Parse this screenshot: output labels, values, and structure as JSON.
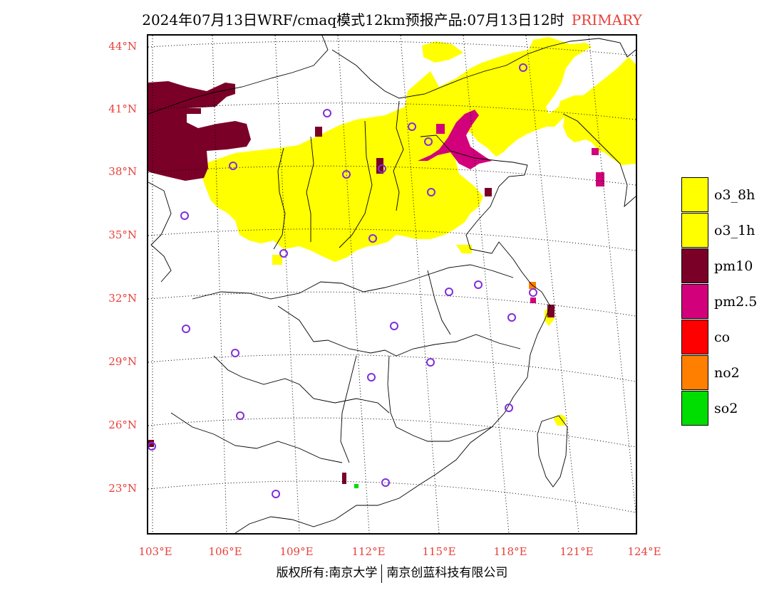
{
  "title": {
    "main": "2024年07月13日WRF/cmaq模式12km预报产品:07月13日12时",
    "tag": "PRIMARY"
  },
  "axes": {
    "lat_labels": [
      "44°N",
      "41°N",
      "38°N",
      "35°N",
      "32°N",
      "29°N",
      "26°N",
      "23°N"
    ],
    "lon_labels": [
      "103°E",
      "106°E",
      "109°E",
      "112°E",
      "115°E",
      "118°E",
      "121°E",
      "124°E"
    ]
  },
  "legend": {
    "items": [
      {
        "label": "o3_8h",
        "color": "#ffff00"
      },
      {
        "label": "o3_1h",
        "color": "#ffff00"
      },
      {
        "label": "pm10",
        "color": "#7a0028"
      },
      {
        "label": "pm2.5",
        "color": "#d2007a"
      },
      {
        "label": "co",
        "color": "#ff0000"
      },
      {
        "label": "no2",
        "color": "#ff7f00"
      },
      {
        "label": "so2",
        "color": "#00dd00"
      }
    ]
  },
  "colors": {
    "o3": "#ffff00",
    "pm10": "#7a0028",
    "pm25": "#d2007a",
    "no2": "#ff7f00",
    "so2": "#00dd00",
    "station_marker": "#7f2fd8",
    "axis_label": "#e8403a"
  },
  "map_layers": {
    "icons": [
      "station-circle-icon"
    ]
  },
  "footer": {
    "left": "版权所有:南京大学",
    "right": "南京创蓝科技有限公司"
  }
}
